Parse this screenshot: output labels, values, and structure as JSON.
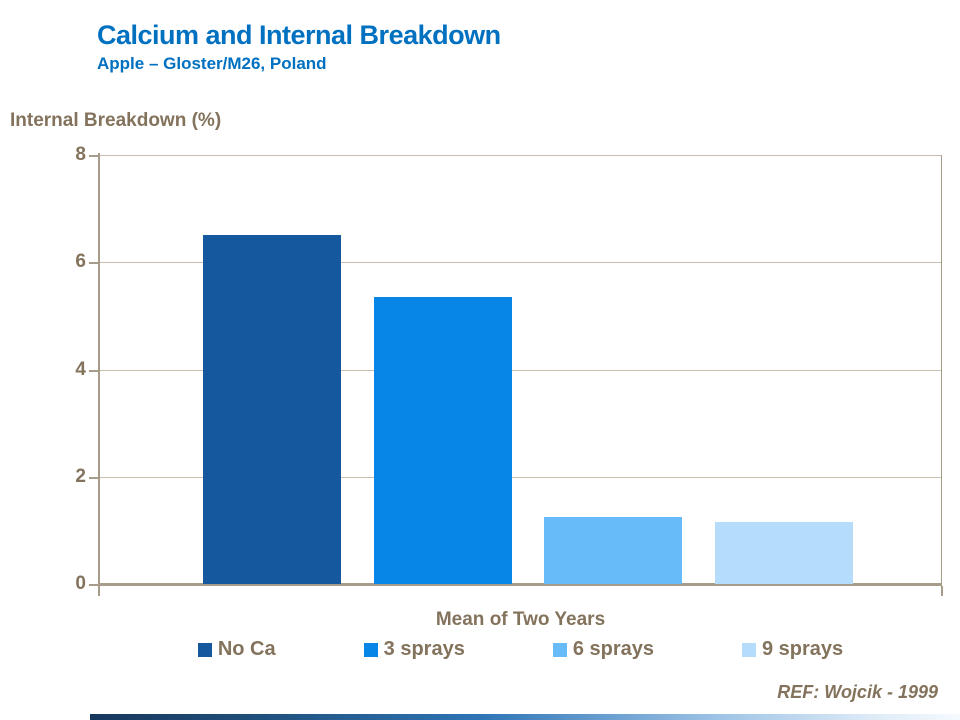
{
  "slide": {
    "title": "Calcium and Internal Breakdown",
    "subtitle": "Apple – Gloster/M26, Poland",
    "reference": "REF: Wojcik - 1999"
  },
  "chart_data": {
    "type": "bar",
    "title": "Calcium and Internal Breakdown",
    "ylabel": "Internal Breakdown (%)",
    "xlabel": "Mean of Two Years",
    "categories": [
      "Mean of Two Years"
    ],
    "series": [
      {
        "name": "No Ca",
        "value": 6.5,
        "color": "#15589E"
      },
      {
        "name": "3 sprays",
        "value": 5.35,
        "color": "#0886E8"
      },
      {
        "name": "6 sprays",
        "value": 1.25,
        "color": "#66BBF8"
      },
      {
        "name": "9 sprays",
        "value": 1.15,
        "color": "#B5DCFA"
      }
    ],
    "ylim": [
      0,
      8
    ],
    "yticks": [
      0,
      2,
      4,
      6,
      8
    ],
    "grid": true,
    "legend_position": "bottom"
  },
  "colors": {
    "title_blue": "#0070C0",
    "text_brown": "#84735C",
    "axis_line": "#A79C89",
    "gridline": "#C8BEAD",
    "footer_gradient_start": "#17375D",
    "footer_gradient_mid": "#2E75B6",
    "footer_gradient_end": "#DEEBF7"
  }
}
